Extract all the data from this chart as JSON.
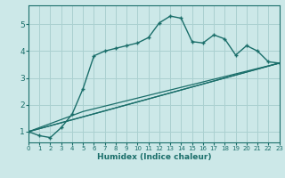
{
  "xlabel": "Humidex (Indice chaleur)",
  "background_color": "#cce8e8",
  "grid_color": "#aad0d0",
  "line_color": "#1a6e6a",
  "xlim": [
    0,
    23
  ],
  "ylim": [
    0.6,
    5.7
  ],
  "xticks": [
    0,
    1,
    2,
    3,
    4,
    5,
    6,
    7,
    8,
    9,
    10,
    11,
    12,
    13,
    14,
    15,
    16,
    17,
    18,
    19,
    20,
    21,
    22,
    23
  ],
  "yticks": [
    1,
    2,
    3,
    4,
    5
  ],
  "series1_x": [
    0,
    1,
    2,
    3,
    4,
    5,
    6,
    7,
    8,
    9,
    10,
    11,
    12,
    13,
    14,
    15,
    16,
    17,
    18,
    19,
    20,
    21,
    22,
    23
  ],
  "series1_y": [
    1.0,
    0.85,
    0.78,
    1.15,
    1.65,
    2.6,
    3.82,
    4.0,
    4.1,
    4.2,
    4.3,
    4.5,
    5.05,
    5.3,
    5.22,
    4.35,
    4.3,
    4.6,
    4.45,
    3.85,
    4.2,
    4.0,
    3.6,
    3.55
  ],
  "series2_x": [
    0,
    23
  ],
  "series2_y": [
    1.0,
    3.55
  ],
  "series3_x": [
    0,
    5,
    23
  ],
  "series3_y": [
    1.0,
    1.55,
    3.55
  ],
  "series4_x": [
    0,
    5,
    23
  ],
  "series4_y": [
    1.0,
    1.75,
    3.55
  ]
}
